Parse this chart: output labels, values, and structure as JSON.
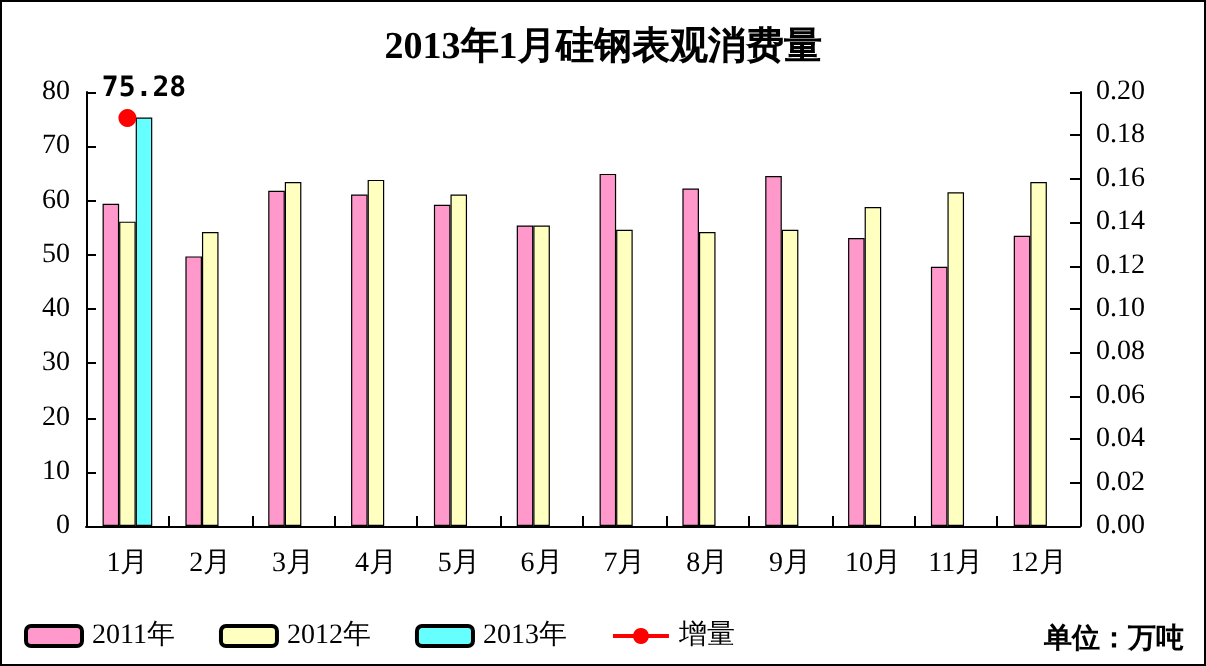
{
  "chart_data": {
    "type": "bar",
    "title": "2013年1月硅钢表观消费量",
    "categories": [
      "1月",
      "2月",
      "3月",
      "4月",
      "5月",
      "6月",
      "7月",
      "8月",
      "9月",
      "10月",
      "11月",
      "12月"
    ],
    "series": [
      {
        "name": "2011年",
        "color": "#ff99cc",
        "values": [
          59.4,
          49.7,
          61.8,
          61.1,
          59.2,
          55.4,
          64.9,
          62.2,
          64.5,
          53.1,
          47.8,
          53.5
        ]
      },
      {
        "name": "2012年",
        "color": "#ffffc0",
        "values": [
          56.1,
          54.2,
          63.4,
          63.8,
          61.1,
          55.4,
          54.6,
          54.2,
          54.6,
          58.8,
          61.5,
          63.4
        ]
      },
      {
        "name": "2013年",
        "color": "#66ffff",
        "values": [
          75.28,
          null,
          null,
          null,
          null,
          null,
          null,
          null,
          null,
          null,
          null,
          null
        ],
        "value_labels": [
          "75.28",
          null,
          null,
          null,
          null,
          null,
          null,
          null,
          null,
          null,
          null,
          null
        ]
      },
      {
        "name": "增量",
        "type": "line",
        "axis": "y2",
        "color": "#ff0000",
        "marker": "circle",
        "values": [
          0.188,
          null,
          null,
          null,
          null,
          null,
          null,
          null,
          null,
          null,
          null,
          null
        ]
      }
    ],
    "ylim": [
      0,
      80
    ],
    "yticks": [
      0,
      10,
      20,
      30,
      40,
      50,
      60,
      70,
      80
    ],
    "y2lim": [
      0,
      0.2
    ],
    "y2ticks": [
      {
        "value": 0,
        "label": "0.00"
      },
      {
        "value": 0.02,
        "label": "0.02"
      },
      {
        "value": 0.04,
        "label": "0.04"
      },
      {
        "value": 0.06,
        "label": "0.06"
      },
      {
        "value": 0.08,
        "label": "0.08"
      },
      {
        "value": 0.1,
        "label": "0.10"
      },
      {
        "value": 0.12,
        "label": "0.12"
      },
      {
        "value": 0.14,
        "label": "0.14"
      },
      {
        "value": 0.16,
        "label": "0.16"
      },
      {
        "value": 0.18,
        "label": "0.18"
      },
      {
        "value": 0.2,
        "label": "0.20"
      }
    ],
    "grid": false,
    "legend": "bottom left",
    "annotations": [
      "单位：万吨"
    ]
  }
}
